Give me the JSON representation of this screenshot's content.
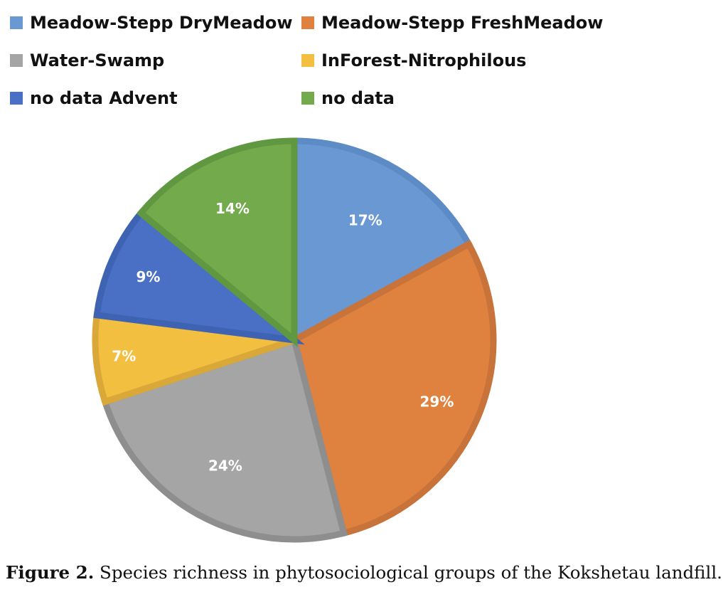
{
  "chart_data": {
    "type": "pie",
    "title": "",
    "categories": [
      "Meadow-Stepp DryMeadow",
      "Meadow-Stepp FreshMeadow",
      "Water-Swamp",
      "InForest-Nitrophilous",
      "no data Advent",
      "no data"
    ],
    "legend_order": [
      0,
      1,
      2,
      3,
      4,
      5
    ],
    "slice_order": [
      0,
      1,
      2,
      3,
      4,
      5
    ],
    "values": [
      17,
      29,
      24,
      7,
      9,
      14
    ],
    "labels": [
      "17%",
      "29%",
      "24%",
      "7%",
      "9%",
      "14%"
    ],
    "colors": [
      "#6a98d2",
      "#df8240",
      "#a5a5a5",
      "#f3bf41",
      "#4a70c5",
      "#72aa4c"
    ],
    "borders": [
      "#5c8bc6",
      "#c8733a",
      "#8e8e8e",
      "#d9a838",
      "#3f63b3",
      "#5f9840"
    ],
    "legend_placement": "top"
  },
  "caption": {
    "label": "Figure 2.",
    "text": " Species richness in phytosociological groups of the Kokshetau landfill."
  }
}
